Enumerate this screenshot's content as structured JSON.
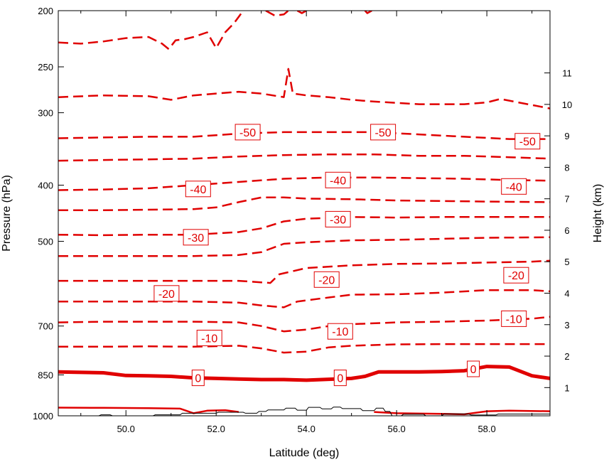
{
  "chart_data": {
    "type": "line",
    "title": "",
    "xlabel": "Latitude (deg)",
    "ylabel": "Pressure (hPa)",
    "ylabel_right": "Height (km)",
    "xlim": [
      48.5,
      59.4
    ],
    "ylim": [
      1000,
      200
    ],
    "pressure_ticks": [
      {
        "value": 200,
        "label": "200"
      },
      {
        "value": 250,
        "label": "250"
      },
      {
        "value": 300,
        "label": "300"
      },
      {
        "value": 400,
        "label": "400"
      },
      {
        "value": 500,
        "label": "500"
      },
      {
        "value": 700,
        "label": "700"
      },
      {
        "value": 850,
        "label": "850"
      },
      {
        "value": 1000,
        "label": "1000"
      }
    ],
    "x_ticks": [
      {
        "value": 50,
        "label": "50.0"
      },
      {
        "value": 52,
        "label": "52.0"
      },
      {
        "value": 54,
        "label": "54.0"
      },
      {
        "value": 56,
        "label": "56.0"
      },
      {
        "value": 58,
        "label": "58.0"
      }
    ],
    "height_ticks": [
      {
        "value": 1,
        "label": "1"
      },
      {
        "value": 2,
        "label": "2"
      },
      {
        "value": 3,
        "label": "3"
      },
      {
        "value": 4,
        "label": "4"
      },
      {
        "value": 5,
        "label": "5"
      },
      {
        "value": 6,
        "label": "6"
      },
      {
        "value": 7,
        "label": "7"
      },
      {
        "value": 8,
        "label": "8"
      },
      {
        "value": 9,
        "label": "9"
      },
      {
        "value": 10,
        "label": "10"
      },
      {
        "value": 11,
        "label": "11"
      }
    ],
    "height_axis": {
      "surface_pressure_hPa": 1013,
      "scale_height_km": 8.0
    },
    "line_color": "#e00000",
    "terrain_color": "#000000",
    "contours": [
      {
        "style": "solid",
        "points": [
          [
            48.5,
            968
          ],
          [
            49.5,
            969
          ],
          [
            50.5,
            970
          ],
          [
            51.2,
            972
          ],
          [
            51.5,
            990
          ],
          [
            51.8,
            980
          ],
          [
            52.2,
            978
          ],
          [
            52.5,
            985
          ]
        ]
      },
      {
        "style": "solid",
        "points": [
          [
            55.5,
            985
          ],
          [
            56,
            990
          ],
          [
            57,
            992
          ],
          [
            57.5,
            994
          ],
          [
            58,
            982
          ],
          [
            58.5,
            980
          ],
          [
            59.4,
            982
          ]
        ]
      },
      {
        "style": "thick",
        "points": [
          [
            48.5,
            840
          ],
          [
            49.5,
            843
          ],
          [
            50,
            852
          ],
          [
            50.5,
            853
          ],
          [
            51,
            855
          ],
          [
            51.5,
            860
          ],
          [
            52,
            862
          ],
          [
            52.5,
            864
          ],
          [
            53,
            866
          ],
          [
            53.5,
            866
          ],
          [
            54,
            868
          ],
          [
            54.5,
            865
          ],
          [
            55,
            862
          ],
          [
            55.3,
            855
          ],
          [
            55.6,
            840
          ],
          [
            56,
            840
          ],
          [
            56.5,
            840
          ],
          [
            57,
            839
          ],
          [
            57.5,
            836
          ],
          [
            58,
            822
          ],
          [
            58.5,
            824
          ],
          [
            59,
            853
          ],
          [
            59.4,
            862
          ]
        ]
      },
      {
        "style": "dashed",
        "points": [
          [
            48.5,
            760
          ],
          [
            49.5,
            760
          ],
          [
            50.5,
            759
          ],
          [
            51.5,
            760
          ],
          [
            52.5,
            757
          ],
          [
            53,
            765
          ],
          [
            53.5,
            778
          ],
          [
            54,
            775
          ],
          [
            54.5,
            762
          ],
          [
            55,
            757
          ],
          [
            56,
            753
          ],
          [
            57,
            752
          ],
          [
            58,
            752
          ],
          [
            59,
            752
          ],
          [
            59.4,
            752
          ]
        ]
      },
      {
        "style": "dashed",
        "points": [
          [
            48.5,
            690
          ],
          [
            49.5,
            688
          ],
          [
            50.5,
            688
          ],
          [
            51.5,
            688
          ],
          [
            52.5,
            690
          ],
          [
            53,
            700
          ],
          [
            53.5,
            715
          ],
          [
            54,
            710
          ],
          [
            54.5,
            700
          ],
          [
            55,
            695
          ],
          [
            56,
            690
          ],
          [
            57,
            688
          ],
          [
            58,
            685
          ],
          [
            59,
            680
          ],
          [
            59.4,
            675
          ]
        ]
      },
      {
        "style": "dashed",
        "points": [
          [
            48.5,
            635
          ],
          [
            49.5,
            635
          ],
          [
            50.5,
            635
          ],
          [
            51.5,
            635
          ],
          [
            52.5,
            638
          ],
          [
            53,
            645
          ],
          [
            53.5,
            650
          ],
          [
            53.8,
            635
          ],
          [
            54.5,
            625
          ],
          [
            55,
            618
          ],
          [
            56,
            617
          ],
          [
            57,
            613
          ],
          [
            58,
            607
          ],
          [
            59,
            607
          ],
          [
            59.4,
            610
          ]
        ]
      },
      {
        "style": "dashed",
        "points": [
          [
            48.5,
            585
          ],
          [
            49.5,
            585
          ],
          [
            50.5,
            585
          ],
          [
            51.5,
            585
          ],
          [
            52.5,
            585
          ],
          [
            53.2,
            590
          ],
          [
            53.4,
            570
          ],
          [
            54,
            556
          ],
          [
            55,
            550
          ],
          [
            56,
            547
          ],
          [
            57,
            546
          ],
          [
            58,
            544
          ],
          [
            59,
            542
          ],
          [
            59.4,
            540
          ]
        ]
      },
      {
        "style": "dashed",
        "points": [
          [
            48.5,
            530
          ],
          [
            49.5,
            530
          ],
          [
            50.5,
            530
          ],
          [
            51.5,
            530
          ],
          [
            52.5,
            528
          ],
          [
            53,
            522
          ],
          [
            53.2,
            515
          ],
          [
            53.5,
            505
          ],
          [
            54,
            502
          ],
          [
            55,
            498
          ],
          [
            56,
            497
          ],
          [
            57,
            495
          ],
          [
            58,
            493
          ],
          [
            59.4,
            492
          ]
        ]
      },
      {
        "style": "dashed",
        "points": [
          [
            48.5,
            487
          ],
          [
            49.5,
            488
          ],
          [
            50.5,
            487
          ],
          [
            51.5,
            487
          ],
          [
            52.5,
            482
          ],
          [
            53,
            475
          ],
          [
            53.5,
            462
          ],
          [
            54,
            457
          ],
          [
            55,
            454
          ],
          [
            56,
            455
          ],
          [
            57,
            454
          ],
          [
            58,
            454
          ],
          [
            59.4,
            454
          ]
        ]
      },
      {
        "style": "dashed",
        "points": [
          [
            48.5,
            442
          ],
          [
            49.5,
            442
          ],
          [
            50.5,
            441
          ],
          [
            51.5,
            440
          ],
          [
            52,
            437
          ],
          [
            52.5,
            428
          ],
          [
            53,
            420
          ],
          [
            53.5,
            420
          ],
          [
            54,
            422
          ],
          [
            55,
            423
          ],
          [
            56,
            425
          ],
          [
            57,
            426
          ],
          [
            58,
            427
          ],
          [
            59.4,
            428
          ]
        ]
      },
      {
        "style": "dashed",
        "points": [
          [
            48.5,
            408
          ],
          [
            49.5,
            407
          ],
          [
            50.5,
            405
          ],
          [
            51.5,
            400
          ],
          [
            52.5,
            395
          ],
          [
            53.5,
            390
          ],
          [
            54.5,
            388
          ],
          [
            55.5,
            388
          ],
          [
            56.5,
            389
          ],
          [
            57.5,
            390
          ],
          [
            58.5,
            392
          ],
          [
            59.4,
            393
          ]
        ]
      },
      {
        "style": "dashed",
        "points": [
          [
            48.5,
            363
          ],
          [
            49.5,
            362
          ],
          [
            50.5,
            361
          ],
          [
            51.5,
            360
          ],
          [
            52.5,
            357
          ],
          [
            53.5,
            355
          ],
          [
            54.5,
            354
          ],
          [
            55.5,
            354
          ],
          [
            56.5,
            356
          ],
          [
            57.5,
            356
          ],
          [
            58.5,
            358
          ],
          [
            59.4,
            360
          ]
        ]
      },
      {
        "style": "dashed",
        "points": [
          [
            48.5,
            332
          ],
          [
            49.5,
            331
          ],
          [
            50.5,
            330
          ],
          [
            51.5,
            330
          ],
          [
            52.5,
            326
          ],
          [
            53.5,
            324
          ],
          [
            54.5,
            324
          ],
          [
            55.5,
            324
          ],
          [
            56.5,
            327
          ],
          [
            57.5,
            330
          ],
          [
            58.5,
            333
          ],
          [
            59.4,
            333
          ]
        ]
      },
      {
        "style": "dashed",
        "points": [
          [
            48.5,
            282
          ],
          [
            49.5,
            280
          ],
          [
            50.5,
            281
          ],
          [
            51,
            285
          ],
          [
            51.5,
            280
          ],
          [
            52,
            278
          ],
          [
            52.5,
            276
          ],
          [
            53,
            278
          ],
          [
            53.5,
            282
          ],
          [
            53.6,
            252
          ],
          [
            53.7,
            278
          ],
          [
            54,
            280
          ],
          [
            54.5,
            282
          ],
          [
            55,
            285
          ],
          [
            55.5,
            287
          ],
          [
            56.5,
            290
          ],
          [
            57.5,
            290
          ],
          [
            58,
            288
          ],
          [
            58.3,
            284
          ],
          [
            58.6,
            287
          ],
          [
            59.4,
            295
          ]
        ]
      },
      {
        "style": "dashed",
        "points": [
          [
            48.5,
            227
          ],
          [
            49,
            228
          ],
          [
            49.5,
            226
          ],
          [
            50,
            223
          ],
          [
            50.5,
            222
          ],
          [
            50.8,
            228
          ],
          [
            50.95,
            233
          ],
          [
            51.1,
            225
          ],
          [
            51.3,
            224
          ],
          [
            51.5,
            222
          ],
          [
            51.8,
            218
          ],
          [
            52,
            232
          ],
          [
            52.2,
            218
          ],
          [
            52.4,
            210
          ],
          [
            52.5,
            205
          ],
          [
            52.6,
            200
          ]
        ]
      },
      {
        "style": "dashed",
        "points": [
          [
            53.1,
            200
          ],
          [
            53.3,
            204
          ],
          [
            53.5,
            203
          ],
          [
            53.6,
            200
          ]
        ]
      },
      {
        "style": "dashed",
        "points": [
          [
            53.8,
            200
          ],
          [
            53.9,
            202
          ],
          [
            54,
            200
          ]
        ]
      },
      {
        "style": "dashed",
        "points": [
          [
            55.3,
            200
          ],
          [
            55.35,
            202
          ],
          [
            55.45,
            200
          ]
        ]
      }
    ],
    "contour_labels": [
      {
        "text": "-50",
        "x": 52.7,
        "p": 324
      },
      {
        "text": "-50",
        "x": 55.7,
        "p": 324
      },
      {
        "text": "-50",
        "x": 58.9,
        "p": 336
      },
      {
        "text": "-40",
        "x": 51.6,
        "p": 406
      },
      {
        "text": "-40",
        "x": 54.7,
        "p": 392
      },
      {
        "text": "-40",
        "x": 58.6,
        "p": 402
      },
      {
        "text": "-30",
        "x": 51.55,
        "p": 492
      },
      {
        "text": "-30",
        "x": 54.7,
        "p": 458
      },
      {
        "text": "-20",
        "x": 50.9,
        "p": 615
      },
      {
        "text": "-20",
        "x": 54.45,
        "p": 582
      },
      {
        "text": "-20",
        "x": 58.65,
        "p": 572
      },
      {
        "text": "-10",
        "x": 51.85,
        "p": 734
      },
      {
        "text": "-10",
        "x": 54.75,
        "p": 715
      },
      {
        "text": "-10",
        "x": 58.6,
        "p": 680
      },
      {
        "text": "0",
        "x": 51.6,
        "p": 860
      },
      {
        "text": "0",
        "x": 54.75,
        "p": 860
      },
      {
        "text": "0",
        "x": 57.7,
        "p": 830
      }
    ],
    "terrain": [
      [
        48.5,
        1000
      ],
      [
        49.4,
        1000
      ],
      [
        49.45,
        996
      ],
      [
        49.65,
        996
      ],
      [
        49.7,
        1000
      ],
      [
        50.6,
        1000
      ],
      [
        50.65,
        996
      ],
      [
        51.2,
        996
      ],
      [
        51.25,
        990
      ],
      [
        52.0,
        990
      ],
      [
        52.05,
        986
      ],
      [
        52.6,
        986
      ],
      [
        52.65,
        990
      ],
      [
        52.9,
        990
      ],
      [
        52.95,
        983
      ],
      [
        53.1,
        983
      ],
      [
        53.15,
        977
      ],
      [
        53.5,
        977
      ],
      [
        53.55,
        970
      ],
      [
        53.75,
        970
      ],
      [
        53.8,
        978
      ],
      [
        54,
        978
      ],
      [
        54.05,
        967
      ],
      [
        54.3,
        967
      ],
      [
        54.35,
        973
      ],
      [
        54.55,
        973
      ],
      [
        54.6,
        966
      ],
      [
        54.75,
        966
      ],
      [
        54.8,
        972
      ],
      [
        55.2,
        972
      ],
      [
        55.25,
        980
      ],
      [
        55.5,
        980
      ],
      [
        55.55,
        970
      ],
      [
        55.7,
        970
      ],
      [
        55.75,
        983
      ],
      [
        55.85,
        983
      ],
      [
        55.9,
        1000
      ],
      [
        56.1,
        1000
      ],
      [
        56.15,
        994
      ],
      [
        56.6,
        994
      ],
      [
        56.65,
        1000
      ],
      [
        57.0,
        1000
      ],
      [
        57.05,
        993
      ],
      [
        57.6,
        993
      ],
      [
        57.65,
        997
      ],
      [
        58.2,
        997
      ],
      [
        58.25,
        993
      ],
      [
        59.4,
        993
      ]
    ]
  }
}
